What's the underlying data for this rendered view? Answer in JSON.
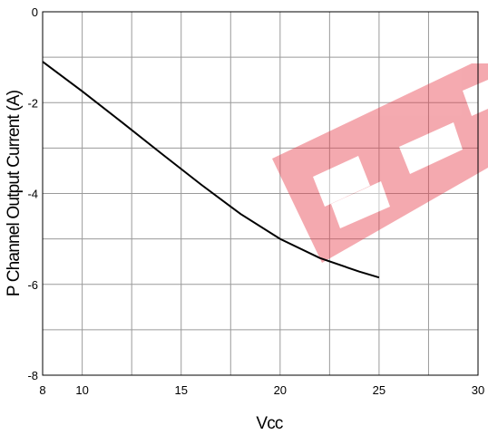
{
  "chart_data": {
    "type": "line",
    "title": "",
    "xlabel": "Vcc",
    "ylabel": "P Channel Output Current (A)",
    "xlim": [
      8,
      30
    ],
    "ylim": [
      -8,
      0
    ],
    "x_grid": [
      8,
      10,
      12.5,
      15,
      17.5,
      20,
      22.5,
      25,
      27.5,
      30
    ],
    "y_grid": [
      -8,
      -7,
      -6,
      -5,
      -4,
      -3,
      -2,
      -1,
      0
    ],
    "x_tick_labels": [
      {
        "value": 8,
        "label": "8"
      },
      {
        "value": 10,
        "label": "10"
      },
      {
        "value": 15,
        "label": "15"
      },
      {
        "value": 20,
        "label": "20"
      },
      {
        "value": 25,
        "label": "25"
      },
      {
        "value": 30,
        "label": "30"
      }
    ],
    "y_tick_labels": [
      {
        "value": 0,
        "label": "0"
      },
      {
        "value": -2,
        "label": "-2"
      },
      {
        "value": -4,
        "label": "-4"
      },
      {
        "value": -6,
        "label": "-6"
      },
      {
        "value": -8,
        "label": "-8"
      }
    ],
    "grid": true,
    "series": [
      {
        "x": [
          8,
          10,
          12,
          14,
          16,
          18,
          20,
          22,
          24,
          25
        ],
        "y": [
          -1.1,
          -1.75,
          -2.43,
          -3.12,
          -3.8,
          -4.45,
          -5.0,
          -5.42,
          -5.72,
          -5.85
        ],
        "color": "#000000"
      }
    ],
    "watermark_color": "#e8434f"
  }
}
